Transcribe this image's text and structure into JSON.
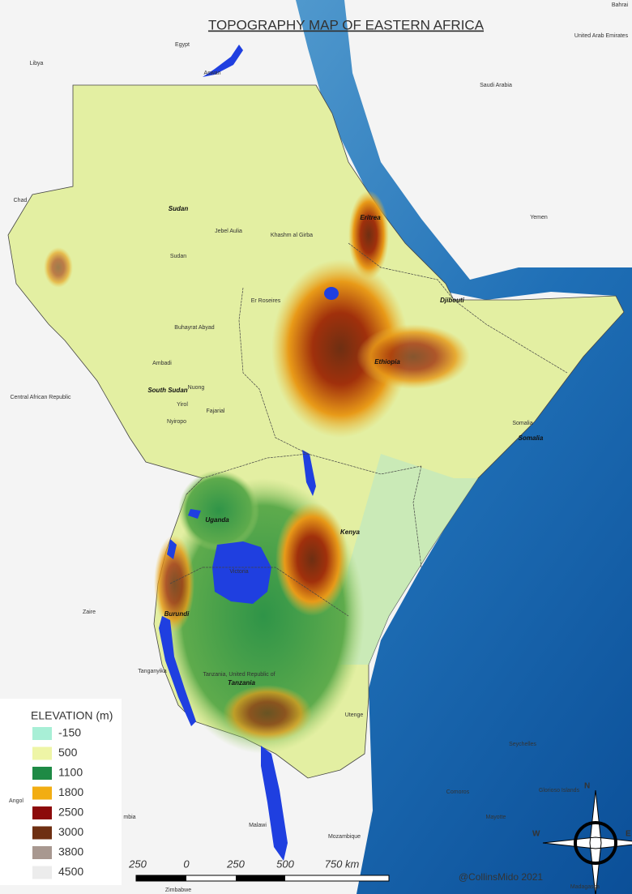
{
  "title": "TOPOGRAPHY MAP OF EASTERN AFRICA",
  "legend": {
    "title": "ELEVATION (m)",
    "items": [
      {
        "value": -150,
        "color": "#a8efd6"
      },
      {
        "value": 500,
        "color": "#eef5a6"
      },
      {
        "value": 1100,
        "color": "#1e8a45"
      },
      {
        "value": 1800,
        "color": "#f2ad12"
      },
      {
        "value": 2500,
        "color": "#8c0a0a"
      },
      {
        "value": 3000,
        "color": "#6e2f12"
      },
      {
        "value": 3800,
        "color": "#a89890"
      },
      {
        "value": 4500,
        "color": "#ececec"
      }
    ]
  },
  "scale_bar": {
    "labels": [
      "250",
      "0",
      "250",
      "500",
      "750 km"
    ]
  },
  "compass": {
    "north": "N",
    "west": "W",
    "east": "E"
  },
  "credit": "@CollinsMido 2021",
  "labels": [
    "Egypt",
    "Libya",
    "Chad",
    "Saudi Arabia",
    "United Arab Emirates",
    "Bahrai",
    "Yemen",
    "Central African Republic",
    "Zaire",
    "Angol",
    "mbia",
    "Malawi",
    "Mozambique",
    "Zimbabwe",
    "Madagasca",
    "Comoros",
    "Mayotte",
    "Seychelles",
    "Glorioso Islands",
    "Somalia",
    "Somalia",
    "Sudan",
    "Sudan",
    "South Sudan",
    "Ethiopia",
    "Eritrea",
    "Djibouti",
    "Kenya",
    "Uganda",
    "Burundi",
    "Tanzania, United Republic of",
    "Tanzania",
    "Jebel Aulia",
    "Khashm al Girba",
    "Er Roseires",
    "Buhayrat Abyad",
    "Aswan",
    "Nuong",
    "Ambadi",
    "Yirol",
    "Fajarial",
    "Nyiropo",
    "Victoria",
    "Tanganyika",
    "Utenge"
  ]
}
